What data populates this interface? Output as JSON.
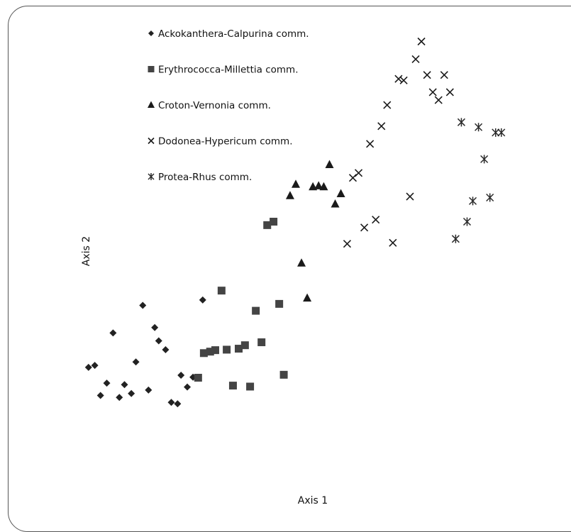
{
  "chart_data": {
    "type": "scatter",
    "title": "",
    "xlabel": "Axis 1",
    "ylabel": "Axis 2",
    "xlim": [
      0,
      100
    ],
    "ylim": [
      0,
      100
    ],
    "grid": false,
    "legend_position": "top-left",
    "series": [
      {
        "name": "Ackokanthera-Calpurina comm.",
        "marker": "diamond",
        "color": "#222222",
        "points": [
          [
            15.5,
            27.1
          ],
          [
            16.6,
            27.5
          ],
          [
            18.7,
            23.9
          ],
          [
            21.8,
            23.6
          ],
          [
            17.6,
            21.4
          ],
          [
            20.9,
            21.0
          ],
          [
            23.0,
            21.8
          ],
          [
            26.0,
            22.5
          ],
          [
            19.8,
            34.1
          ],
          [
            23.8,
            28.2
          ],
          [
            25.0,
            39.7
          ],
          [
            27.1,
            35.2
          ],
          [
            27.8,
            32.5
          ],
          [
            29.0,
            30.7
          ],
          [
            31.7,
            25.5
          ],
          [
            33.8,
            25.1
          ],
          [
            32.8,
            23.1
          ],
          [
            30.0,
            20.0
          ],
          [
            31.1,
            19.7
          ],
          [
            35.5,
            40.8
          ]
        ]
      },
      {
        "name": "Erythrococca-Millettia comm.",
        "marker": "square",
        "color": "#444444",
        "points": [
          [
            38.8,
            42.7
          ],
          [
            46.8,
            56.0
          ],
          [
            47.9,
            56.7
          ],
          [
            44.8,
            38.6
          ],
          [
            48.9,
            40.0
          ],
          [
            45.8,
            32.2
          ],
          [
            41.8,
            30.9
          ],
          [
            42.9,
            31.6
          ],
          [
            39.7,
            30.7
          ],
          [
            37.7,
            30.6
          ],
          [
            36.8,
            30.3
          ],
          [
            35.7,
            30.0
          ],
          [
            34.7,
            25.0
          ],
          [
            49.7,
            25.6
          ],
          [
            40.8,
            23.4
          ],
          [
            43.8,
            23.2
          ]
        ]
      },
      {
        "name": "Croton-Vernonia comm.",
        "marker": "triangle",
        "color": "#1a1a1a",
        "points": [
          [
            57.7,
            68.3
          ],
          [
            51.8,
            64.3
          ],
          [
            50.8,
            62.0
          ],
          [
            54.8,
            63.8
          ],
          [
            55.8,
            64.0
          ],
          [
            56.7,
            63.8
          ],
          [
            59.7,
            62.4
          ],
          [
            58.7,
            60.3
          ],
          [
            52.8,
            48.3
          ],
          [
            53.8,
            41.2
          ]
        ]
      },
      {
        "name": "Dodonea-Hypericum comm.",
        "marker": "x",
        "color": "#1a1a1a",
        "points": [
          [
            73.8,
            93.3
          ],
          [
            72.8,
            89.7
          ],
          [
            74.8,
            86.5
          ],
          [
            77.8,
            86.5
          ],
          [
            69.8,
            85.7
          ],
          [
            70.7,
            85.4
          ],
          [
            75.8,
            83.0
          ],
          [
            78.8,
            83.0
          ],
          [
            76.8,
            81.4
          ],
          [
            67.8,
            80.4
          ],
          [
            66.8,
            76.1
          ],
          [
            64.8,
            72.5
          ],
          [
            62.8,
            66.6
          ],
          [
            61.8,
            65.6
          ],
          [
            71.8,
            61.8
          ],
          [
            65.8,
            57.1
          ],
          [
            63.8,
            55.5
          ],
          [
            60.8,
            52.2
          ],
          [
            68.8,
            52.4
          ]
        ]
      },
      {
        "name": "Protea-Rhus comm.",
        "marker": "asterisk",
        "color": "#2a2a2a",
        "points": [
          [
            80.8,
            76.9
          ],
          [
            83.8,
            75.9
          ],
          [
            86.8,
            74.8
          ],
          [
            87.8,
            74.8
          ],
          [
            84.8,
            69.4
          ],
          [
            85.8,
            61.6
          ],
          [
            82.8,
            60.9
          ],
          [
            81.8,
            56.7
          ],
          [
            79.8,
            53.2
          ]
        ]
      }
    ]
  }
}
